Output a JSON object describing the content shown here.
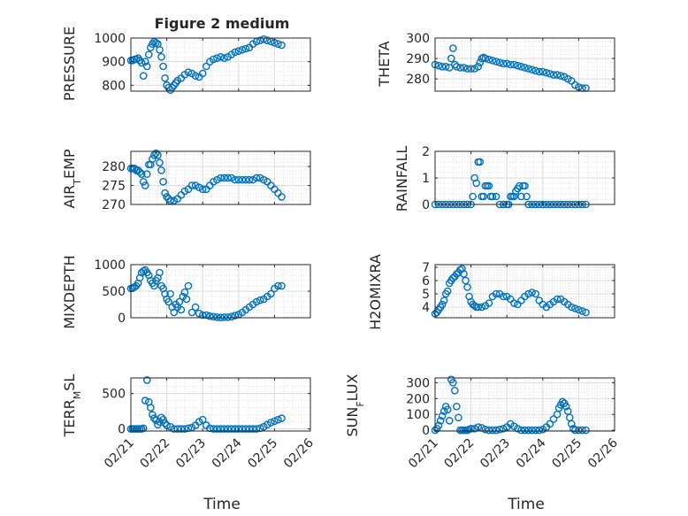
{
  "figure": {
    "title": "Figure 2 medium"
  },
  "chart_data": [
    {
      "type": "scatter",
      "id": "pressure",
      "ylabel": "PRESSURE",
      "ylim": [
        775,
        1000
      ],
      "yticks": [
        800,
        900,
        1000
      ],
      "xlim": [
        0,
        5
      ],
      "xticks": [
        "02/21",
        "02/22",
        "02/23",
        "02/24",
        "02/25",
        "02/26"
      ],
      "series": [
        {
          "color": "#0072BD",
          "x": [
            0.0,
            0.05,
            0.1,
            0.15,
            0.2,
            0.25,
            0.3,
            0.35,
            0.4,
            0.45,
            0.5,
            0.55,
            0.6,
            0.65,
            0.7,
            0.75,
            0.8,
            0.85,
            0.9,
            0.95,
            1.0,
            1.05,
            1.1,
            1.15,
            1.2,
            1.25,
            1.3,
            1.4,
            1.5,
            1.6,
            1.7,
            1.8,
            1.9,
            2.0,
            2.1,
            2.2,
            2.3,
            2.4,
            2.5,
            2.6,
            2.7,
            2.8,
            2.9,
            3.0,
            3.1,
            3.2,
            3.3,
            3.4,
            3.5,
            3.6,
            3.7,
            3.8,
            3.9,
            4.0,
            4.1,
            4.2
          ],
          "y": [
            905,
            905,
            910,
            910,
            915,
            905,
            895,
            840,
            900,
            880,
            930,
            960,
            975,
            985,
            980,
            975,
            950,
            920,
            880,
            830,
            800,
            790,
            780,
            790,
            800,
            810,
            820,
            830,
            845,
            855,
            850,
            840,
            835,
            850,
            880,
            900,
            910,
            915,
            920,
            915,
            920,
            930,
            940,
            945,
            950,
            955,
            960,
            975,
            985,
            990,
            995,
            990,
            985,
            980,
            975,
            970
          ]
        }
      ]
    },
    {
      "type": "scatter",
      "id": "theta",
      "ylabel": "THETA",
      "ylim": [
        274,
        300
      ],
      "yticks": [
        280,
        290,
        300
      ],
      "xlim": [
        0,
        5
      ],
      "xticks": [
        "02/21",
        "02/22",
        "02/23",
        "02/24",
        "02/25",
        "02/26"
      ],
      "series": [
        {
          "color": "#0072BD",
          "x": [
            0.0,
            0.1,
            0.2,
            0.3,
            0.4,
            0.45,
            0.5,
            0.55,
            0.6,
            0.7,
            0.8,
            0.9,
            1.0,
            1.1,
            1.2,
            1.25,
            1.3,
            1.35,
            1.4,
            1.5,
            1.6,
            1.7,
            1.8,
            1.9,
            2.0,
            2.1,
            2.2,
            2.3,
            2.4,
            2.5,
            2.6,
            2.7,
            2.8,
            2.9,
            3.0,
            3.1,
            3.2,
            3.3,
            3.4,
            3.5,
            3.6,
            3.7,
            3.8,
            3.9,
            4.0,
            4.1,
            4.2
          ],
          "y": [
            287,
            286.5,
            286,
            286,
            285.5,
            290,
            295,
            287,
            286,
            285.5,
            285.5,
            285,
            285,
            285,
            286,
            288,
            290,
            290.5,
            290,
            289.5,
            289,
            288.5,
            288,
            287.5,
            287.5,
            287,
            287,
            286.5,
            286,
            285.5,
            285,
            284.5,
            284,
            283.5,
            283.5,
            283,
            282.5,
            282,
            282,
            281.5,
            281,
            280,
            279,
            277,
            276,
            275.5,
            275.5
          ]
        }
      ]
    },
    {
      "type": "scatter",
      "id": "air-temp",
      "ylabel": "AIR_TEMP",
      "ylim": [
        270,
        284
      ],
      "yticks": [
        270,
        275,
        280
      ],
      "xlim": [
        0,
        5
      ],
      "xticks": [
        "02/21",
        "02/22",
        "02/23",
        "02/24",
        "02/25",
        "02/26"
      ],
      "series": [
        {
          "color": "#0072BD",
          "x": [
            0.0,
            0.05,
            0.1,
            0.15,
            0.2,
            0.25,
            0.3,
            0.35,
            0.4,
            0.45,
            0.5,
            0.55,
            0.6,
            0.65,
            0.7,
            0.75,
            0.8,
            0.85,
            0.9,
            0.95,
            1.0,
            1.05,
            1.1,
            1.2,
            1.3,
            1.4,
            1.5,
            1.6,
            1.7,
            1.8,
            1.9,
            2.0,
            2.1,
            2.2,
            2.3,
            2.4,
            2.5,
            2.6,
            2.7,
            2.8,
            2.9,
            3.0,
            3.1,
            3.2,
            3.3,
            3.4,
            3.5,
            3.6,
            3.7,
            3.8,
            3.9,
            4.0,
            4.1,
            4.2
          ],
          "y": [
            279.5,
            279.5,
            279.5,
            279,
            279,
            278.5,
            278,
            276,
            275,
            278,
            280.5,
            280.5,
            282,
            283,
            283.5,
            283,
            281,
            279,
            276,
            273,
            272,
            271.5,
            271,
            271,
            271.5,
            272.5,
            273.5,
            274,
            275,
            275,
            274.5,
            274,
            274,
            275,
            276,
            276.5,
            277,
            277,
            277,
            277,
            276.5,
            276.5,
            276.5,
            276.5,
            276.5,
            276.5,
            277,
            277,
            276.5,
            276,
            275,
            274,
            273,
            272
          ]
        }
      ]
    },
    {
      "type": "scatter",
      "id": "rainfall",
      "ylabel": "RAINFALL",
      "ylim": [
        0,
        2
      ],
      "yticks": [
        0,
        1,
        2
      ],
      "xlim": [
        0,
        5
      ],
      "xticks": [
        "02/21",
        "02/22",
        "02/23",
        "02/24",
        "02/25",
        "02/26"
      ],
      "series": [
        {
          "color": "#0072BD",
          "x": [
            0.0,
            0.1,
            0.2,
            0.3,
            0.4,
            0.5,
            0.6,
            0.7,
            0.8,
            0.9,
            1.0,
            1.05,
            1.1,
            1.15,
            1.2,
            1.25,
            1.3,
            1.35,
            1.4,
            1.45,
            1.5,
            1.55,
            1.6,
            1.7,
            1.8,
            1.9,
            2.0,
            2.05,
            2.1,
            2.15,
            2.2,
            2.25,
            2.3,
            2.35,
            2.4,
            2.45,
            2.5,
            2.55,
            2.6,
            2.7,
            2.8,
            2.9,
            3.0,
            3.1,
            3.2,
            3.3,
            3.4,
            3.5,
            3.6,
            3.7,
            3.8,
            3.9,
            4.0,
            4.1,
            4.2
          ],
          "y": [
            0,
            0,
            0,
            0,
            0,
            0,
            0,
            0,
            0,
            0,
            0,
            0.3,
            1.0,
            0.8,
            1.6,
            1.6,
            0.3,
            0.3,
            0.7,
            0.7,
            0.7,
            0.3,
            0.3,
            0.3,
            0,
            0,
            0,
            0,
            0.3,
            0.3,
            0.3,
            0.5,
            0.6,
            0.7,
            0.3,
            0.7,
            0.7,
            0.3,
            0,
            0,
            0,
            0,
            0,
            0,
            0,
            0,
            0,
            0,
            0,
            0,
            0,
            0,
            0,
            0,
            0
          ]
        }
      ]
    },
    {
      "type": "scatter",
      "id": "mixdepth",
      "ylabel": "MIXDEPTH",
      "ylim": [
        0,
        1000
      ],
      "yticks": [
        0,
        500,
        1000
      ],
      "xlim": [
        0,
        5
      ],
      "xticks": [
        "02/21",
        "02/22",
        "02/23",
        "02/24",
        "02/25",
        "02/26"
      ],
      "series": [
        {
          "color": "#0072BD",
          "x": [
            0.0,
            0.05,
            0.1,
            0.15,
            0.2,
            0.25,
            0.3,
            0.35,
            0.4,
            0.45,
            0.5,
            0.55,
            0.6,
            0.65,
            0.7,
            0.75,
            0.8,
            0.85,
            0.9,
            0.95,
            1.0,
            1.05,
            1.1,
            1.15,
            1.2,
            1.25,
            1.3,
            1.35,
            1.4,
            1.45,
            1.5,
            1.55,
            1.6,
            1.7,
            1.8,
            1.9,
            2.0,
            2.1,
            2.2,
            2.3,
            2.4,
            2.5,
            2.6,
            2.7,
            2.8,
            2.9,
            3.0,
            3.1,
            3.2,
            3.3,
            3.4,
            3.5,
            3.6,
            3.7,
            3.8,
            3.9,
            4.0,
            4.1,
            4.2
          ],
          "y": [
            550,
            560,
            580,
            600,
            650,
            750,
            850,
            880,
            900,
            850,
            800,
            700,
            650,
            600,
            700,
            750,
            850,
            600,
            550,
            450,
            350,
            300,
            450,
            200,
            100,
            250,
            200,
            300,
            150,
            400,
            480,
            350,
            600,
            100,
            200,
            80,
            50,
            50,
            30,
            20,
            10,
            5,
            10,
            10,
            20,
            40,
            60,
            100,
            150,
            200,
            250,
            300,
            330,
            350,
            400,
            450,
            550,
            600,
            600
          ]
        }
      ]
    },
    {
      "type": "scatter",
      "id": "h2omixra",
      "ylabel": "H2OMIXRA",
      "ylim": [
        3.2,
        7.2
      ],
      "yticks": [
        4,
        5,
        6,
        7
      ],
      "xlim": [
        0,
        5
      ],
      "xticks": [
        "02/21",
        "02/22",
        "02/23",
        "02/24",
        "02/25",
        "02/26"
      ],
      "series": [
        {
          "color": "#0072BD",
          "x": [
            0.0,
            0.05,
            0.1,
            0.15,
            0.2,
            0.25,
            0.3,
            0.35,
            0.4,
            0.45,
            0.5,
            0.55,
            0.6,
            0.65,
            0.7,
            0.75,
            0.8,
            0.85,
            0.9,
            0.95,
            1.0,
            1.05,
            1.1,
            1.15,
            1.2,
            1.3,
            1.4,
            1.5,
            1.6,
            1.7,
            1.8,
            1.9,
            2.0,
            2.1,
            2.2,
            2.3,
            2.4,
            2.5,
            2.6,
            2.7,
            2.8,
            2.9,
            3.0,
            3.1,
            3.2,
            3.3,
            3.4,
            3.5,
            3.6,
            3.7,
            3.8,
            3.9,
            4.0,
            4.1,
            4.2
          ],
          "y": [
            3.5,
            3.6,
            3.8,
            4.0,
            4.2,
            4.5,
            5.0,
            5.2,
            5.8,
            6.0,
            6.2,
            6.3,
            6.5,
            6.6,
            6.8,
            6.9,
            6.5,
            6.0,
            5.5,
            4.8,
            4.4,
            4.2,
            4.1,
            4.0,
            4.0,
            4.0,
            4.1,
            4.3,
            4.8,
            5.0,
            5.0,
            4.8,
            4.8,
            4.6,
            4.3,
            4.2,
            4.5,
            4.8,
            5.0,
            5.1,
            5.0,
            4.5,
            4.2,
            4.0,
            4.2,
            4.4,
            4.6,
            4.6,
            4.4,
            4.2,
            4.0,
            3.9,
            3.8,
            3.7,
            3.6
          ]
        }
      ]
    },
    {
      "type": "scatter",
      "id": "terr-msl",
      "ylabel": "TERR_MSL",
      "ylim": [
        -30,
        720
      ],
      "yticks": [
        0,
        500
      ],
      "xlim": [
        0,
        5
      ],
      "xticks": [
        "02/21",
        "02/22",
        "02/23",
        "02/24",
        "02/25",
        "02/26"
      ],
      "series": [
        {
          "color": "#0072BD",
          "x": [
            0.0,
            0.05,
            0.1,
            0.15,
            0.2,
            0.25,
            0.3,
            0.35,
            0.4,
            0.45,
            0.5,
            0.55,
            0.6,
            0.65,
            0.7,
            0.75,
            0.8,
            0.85,
            0.9,
            0.95,
            1.0,
            1.1,
            1.2,
            1.3,
            1.4,
            1.5,
            1.6,
            1.7,
            1.8,
            1.9,
            2.0,
            2.1,
            2.2,
            2.3,
            2.4,
            2.5,
            2.6,
            2.7,
            2.8,
            2.9,
            3.0,
            3.1,
            3.2,
            3.3,
            3.4,
            3.5,
            3.6,
            3.7,
            3.8,
            3.9,
            4.0,
            4.1,
            4.2
          ],
          "y": [
            0,
            0,
            0,
            0,
            0,
            0,
            0,
            10,
            400,
            690,
            380,
            300,
            200,
            150,
            120,
            60,
            100,
            160,
            130,
            80,
            50,
            30,
            0,
            0,
            0,
            0,
            10,
            20,
            50,
            100,
            130,
            50,
            10,
            0,
            0,
            0,
            0,
            0,
            0,
            0,
            0,
            0,
            0,
            0,
            0,
            0,
            10,
            30,
            60,
            90,
            110,
            130,
            150
          ]
        }
      ]
    },
    {
      "type": "scatter",
      "id": "sun-flux",
      "ylabel": "SUN_FLUX",
      "ylim": [
        -5,
        330
      ],
      "yticks": [
        0,
        100,
        200,
        300
      ],
      "xlim": [
        0,
        5
      ],
      "xticks": [
        "02/21",
        "02/22",
        "02/23",
        "02/24",
        "02/25",
        "02/26"
      ],
      "series": [
        {
          "color": "#0072BD",
          "x": [
            0.0,
            0.05,
            0.1,
            0.15,
            0.2,
            0.25,
            0.3,
            0.35,
            0.4,
            0.45,
            0.5,
            0.55,
            0.6,
            0.65,
            0.7,
            0.75,
            0.8,
            0.85,
            0.9,
            0.95,
            1.0,
            1.1,
            1.2,
            1.3,
            1.4,
            1.5,
            1.6,
            1.7,
            1.8,
            1.9,
            2.0,
            2.1,
            2.2,
            2.3,
            2.4,
            2.5,
            2.6,
            2.7,
            2.8,
            2.9,
            3.0,
            3.1,
            3.2,
            3.3,
            3.4,
            3.45,
            3.5,
            3.55,
            3.6,
            3.65,
            3.7,
            3.75,
            3.8,
            3.85,
            3.9,
            4.0,
            4.1,
            4.2
          ],
          "y": [
            0,
            10,
            30,
            60,
            90,
            120,
            150,
            130,
            60,
            320,
            300,
            250,
            150,
            80,
            0,
            0,
            0,
            0,
            0,
            5,
            10,
            10,
            20,
            15,
            5,
            0,
            0,
            0,
            5,
            10,
            20,
            40,
            25,
            10,
            0,
            0,
            0,
            0,
            0,
            0,
            5,
            20,
            40,
            70,
            100,
            140,
            160,
            180,
            170,
            150,
            120,
            80,
            40,
            10,
            0,
            0,
            0,
            0
          ]
        }
      ]
    }
  ],
  "axes": {
    "xlabel": "Time",
    "ylabels": {
      "pressure": "PRESSURE",
      "theta": "THETA",
      "air_temp_main": "AIR",
      "air_temp_sub": "T",
      "air_temp_rest": "EMP",
      "rainfall": "RAINFALL",
      "mixdepth": "MIXDEPTH",
      "h2omixra": "H2OMIXRA",
      "terr_main": "TERR",
      "terr_sub": "M",
      "terr_rest": "SL",
      "sun_main": "SUN",
      "sun_sub": "F",
      "sun_rest": "LUX"
    }
  }
}
